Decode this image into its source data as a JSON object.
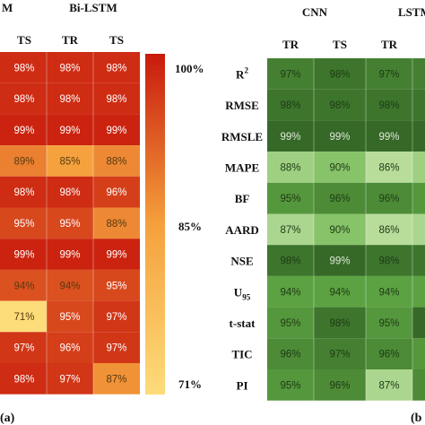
{
  "chart_data": [
    {
      "type": "heatmap",
      "panel_label": "(a)",
      "group_headers": [
        "M",
        "Bi-LSTM"
      ],
      "columns": [
        "TS",
        "TR",
        "TS"
      ],
      "column_groups": [
        0,
        1,
        1
      ],
      "values": [
        [
          98,
          98,
          98
        ],
        [
          98,
          98,
          98
        ],
        [
          99,
          99,
          99
        ],
        [
          89,
          85,
          88
        ],
        [
          98,
          98,
          96
        ],
        [
          95,
          95,
          88
        ],
        [
          99,
          99,
          99
        ],
        [
          94,
          94,
          95
        ],
        [
          71,
          95,
          97
        ],
        [
          97,
          96,
          97
        ],
        [
          98,
          97,
          87
        ]
      ],
      "colorbar": {
        "max_label": "100%",
        "mid_label": "85%",
        "min_label": "71%",
        "min": 71,
        "max": 100
      },
      "colors": {
        "low": "#fddc7a",
        "mid": "#f5a03c",
        "high": "#c81a0c"
      }
    },
    {
      "type": "heatmap",
      "panel_label": "(b",
      "group_headers": [
        "CNN",
        "LSTM"
      ],
      "columns": [
        "TR",
        "TS",
        "TR",
        ""
      ],
      "column_groups": [
        0,
        0,
        1,
        1
      ],
      "rows": [
        "R",
        "RMSE",
        "RMSLE",
        "MAPE",
        "BF",
        "AARD",
        "NSE",
        "U",
        "t-stat",
        "TIC",
        "PI"
      ],
      "row_superscripts": [
        "2",
        "",
        "",
        "",
        "",
        "",
        "",
        "",
        "",
        "",
        ""
      ],
      "row_subscripts": [
        "",
        "",
        "",
        "",
        "",
        "",
        "",
        "95",
        "",
        "",
        ""
      ],
      "values": [
        [
          97,
          98,
          97,
          null
        ],
        [
          98,
          98,
          98,
          null
        ],
        [
          99,
          99,
          99,
          null
        ],
        [
          88,
          90,
          86,
          null
        ],
        [
          95,
          96,
          96,
          null
        ],
        [
          87,
          90,
          86,
          null
        ],
        [
          98,
          99,
          98,
          null
        ],
        [
          94,
          94,
          94,
          null
        ],
        [
          95,
          98,
          95,
          null
        ],
        [
          96,
          97,
          96,
          null
        ],
        [
          95,
          96,
          87,
          null
        ]
      ],
      "hidden_shades": [
        97,
        98,
        99,
        88,
        95,
        87,
        98,
        94,
        99,
        95,
        96
      ],
      "colors": {
        "low": "#c4e3a8",
        "mid": "#68b34a",
        "high": "#2e5e22"
      }
    }
  ]
}
